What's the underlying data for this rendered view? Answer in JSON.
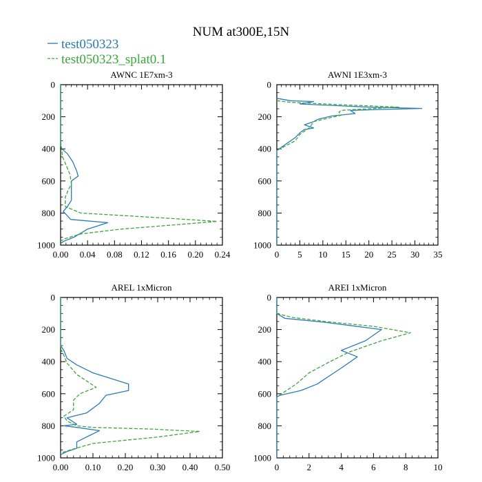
{
  "figure": {
    "title": "NUM at300E,15N",
    "colors": {
      "series1": "#2a7ab8",
      "series2": "#3aa53a",
      "axis": "#000000"
    }
  },
  "legend": {
    "items": [
      {
        "name": "test050323",
        "style": "solid",
        "color": "#2a7ab8"
      },
      {
        "name": "test050323_splat0.1",
        "style": "dashed",
        "color": "#3aa53a"
      }
    ]
  },
  "chart_data": [
    {
      "type": "line",
      "title": "AWNC  1E7xm-3",
      "xlim": [
        0,
        0.24
      ],
      "ylim": [
        0,
        1000
      ],
      "y_inverted": true,
      "xticks": [
        0,
        0.04,
        0.08,
        0.12,
        0.16,
        0.2,
        0.24
      ],
      "xtick_labels": [
        "0.00",
        "0.04",
        "0.08",
        "0.12",
        "0.16",
        "0.20",
        "0.24"
      ],
      "yticks": [
        0,
        200,
        400,
        600,
        800,
        1000
      ],
      "ytick_labels": [
        "0",
        "200",
        "400",
        "600",
        "800",
        "1000"
      ],
      "series": [
        {
          "name": "test050323",
          "style": "solid",
          "color": "#2a7ab8",
          "points": [
            [
              0,
              0
            ],
            [
              0,
              380
            ],
            [
              0.002,
              400
            ],
            [
              0.01,
              430
            ],
            [
              0.018,
              480
            ],
            [
              0.024,
              540
            ],
            [
              0.026,
              570
            ],
            [
              0.016,
              600
            ],
            [
              0.016,
              660
            ],
            [
              0.016,
              720
            ],
            [
              0.01,
              760
            ],
            [
              0.004,
              790
            ],
            [
              0.015,
              840
            ],
            [
              0.07,
              860
            ],
            [
              0.04,
              900
            ],
            [
              0.02,
              950
            ],
            [
              0.005,
              975
            ],
            [
              0,
              990
            ]
          ]
        },
        {
          "name": "test050323_splat0.1",
          "style": "dashed",
          "color": "#3aa53a",
          "points": [
            [
              0,
              0
            ],
            [
              0,
              350
            ],
            [
              0.003,
              450
            ],
            [
              0.008,
              500
            ],
            [
              0.014,
              560
            ],
            [
              0.016,
              620
            ],
            [
              0.012,
              650
            ],
            [
              0.007,
              700
            ],
            [
              0.007,
              760
            ],
            [
              0.03,
              800
            ],
            [
              0.15,
              830
            ],
            [
              0.232,
              852
            ],
            [
              0.18,
              870
            ],
            [
              0.09,
              900
            ],
            [
              0.03,
              930
            ],
            [
              0.006,
              960
            ],
            [
              0,
              975
            ]
          ]
        }
      ]
    },
    {
      "type": "line",
      "title": "AWNI  1E3xm-3",
      "xlim": [
        0,
        35
      ],
      "ylim": [
        0,
        1000
      ],
      "y_inverted": true,
      "xticks": [
        0,
        5,
        10,
        15,
        20,
        25,
        30,
        35
      ],
      "xtick_labels": [
        "0",
        "5",
        "10",
        "15",
        "20",
        "25",
        "30",
        "35"
      ],
      "yticks": [
        0,
        200,
        400,
        600,
        800,
        1000
      ],
      "ytick_labels": [
        "0",
        "200",
        "400",
        "600",
        "800",
        "1000"
      ],
      "series": [
        {
          "name": "test050323",
          "style": "solid",
          "color": "#2a7ab8",
          "points": [
            [
              0,
              85
            ],
            [
              3,
              100
            ],
            [
              8,
              105
            ],
            [
              5,
              120
            ],
            [
              20,
              140
            ],
            [
              31.5,
              148
            ],
            [
              22,
              155
            ],
            [
              16,
              160
            ],
            [
              17,
              180
            ],
            [
              12,
              195
            ],
            [
              9,
              215
            ],
            [
              8,
              230
            ],
            [
              6,
              250
            ],
            [
              8,
              270
            ],
            [
              6,
              280
            ],
            [
              5,
              300
            ],
            [
              4,
              330
            ],
            [
              2,
              370
            ],
            [
              0,
              410
            ],
            [
              0,
              1000
            ]
          ]
        },
        {
          "name": "test050323_splat0.1",
          "style": "dashed",
          "color": "#3aa53a",
          "points": [
            [
              0,
              100
            ],
            [
              3,
              110
            ],
            [
              14,
              125
            ],
            [
              26.5,
              140
            ],
            [
              20,
              150
            ],
            [
              14,
              160
            ],
            [
              13.5,
              170
            ],
            [
              14,
              190
            ],
            [
              11,
              210
            ],
            [
              8,
              230
            ],
            [
              7,
              270
            ],
            [
              5,
              310
            ],
            [
              4,
              350
            ],
            [
              2,
              380
            ],
            [
              0,
              410
            ]
          ]
        }
      ]
    },
    {
      "type": "line",
      "title": "AREL  1xMicron",
      "xlim": [
        0,
        0.5
      ],
      "ylim": [
        0,
        1000
      ],
      "y_inverted": true,
      "xticks": [
        0,
        0.1,
        0.2,
        0.3,
        0.4,
        0.5
      ],
      "xtick_labels": [
        "0.00",
        "0.10",
        "0.20",
        "0.30",
        "0.40",
        "0.50"
      ],
      "yticks": [
        0,
        200,
        400,
        600,
        800,
        1000
      ],
      "ytick_labels": [
        "0",
        "200",
        "400",
        "600",
        "800",
        "1000"
      ],
      "series": [
        {
          "name": "test050323",
          "style": "solid",
          "color": "#2a7ab8",
          "points": [
            [
              0,
              0
            ],
            [
              0,
              300
            ],
            [
              0.01,
              330
            ],
            [
              0.02,
              380
            ],
            [
              0.05,
              420
            ],
            [
              0.1,
              470
            ],
            [
              0.21,
              540
            ],
            [
              0.21,
              580
            ],
            [
              0.14,
              610
            ],
            [
              0.12,
              660
            ],
            [
              0.08,
              720
            ],
            [
              0.02,
              750
            ],
            [
              0.05,
              790
            ],
            [
              0.01,
              800
            ],
            [
              0.05,
              810
            ],
            [
              0.12,
              830
            ],
            [
              0.05,
              900
            ],
            [
              0.05,
              940
            ],
            [
              0.02,
              960
            ],
            [
              0,
              980
            ]
          ]
        },
        {
          "name": "test050323_splat0.1",
          "style": "dashed",
          "color": "#3aa53a",
          "points": [
            [
              0,
              0
            ],
            [
              0,
              320
            ],
            [
              0.01,
              360
            ],
            [
              0.02,
              410
            ],
            [
              0.05,
              480
            ],
            [
              0.11,
              560
            ],
            [
              0.06,
              600
            ],
            [
              0.04,
              640
            ],
            [
              0.04,
              700
            ],
            [
              0.01,
              740
            ],
            [
              0.02,
              770
            ],
            [
              0.05,
              800
            ],
            [
              0.1,
              810
            ],
            [
              0.28,
              820
            ],
            [
              0.43,
              835
            ],
            [
              0.3,
              870
            ],
            [
              0.1,
              910
            ],
            [
              0.03,
              950
            ],
            [
              0,
              970
            ]
          ]
        }
      ]
    },
    {
      "type": "line",
      "title": "AREI  1xMicron",
      "xlim": [
        0,
        10
      ],
      "ylim": [
        0,
        1000
      ],
      "y_inverted": true,
      "xticks": [
        0,
        2,
        4,
        6,
        8,
        10
      ],
      "xtick_labels": [
        "0",
        "2",
        "4",
        "6",
        "8",
        "10"
      ],
      "yticks": [
        0,
        200,
        400,
        600,
        800,
        1000
      ],
      "ytick_labels": [
        "0",
        "200",
        "400",
        "600",
        "800",
        "1000"
      ],
      "series": [
        {
          "name": "test050323",
          "style": "solid",
          "color": "#2a7ab8",
          "points": [
            [
              0,
              0
            ],
            [
              0,
              100
            ],
            [
              0.5,
              130
            ],
            [
              3,
              155
            ],
            [
              6.5,
              200
            ],
            [
              5.5,
              270
            ],
            [
              4,
              330
            ],
            [
              5,
              370
            ],
            [
              4,
              440
            ],
            [
              2.5,
              540
            ],
            [
              1.5,
              580
            ],
            [
              0.2,
              610
            ],
            [
              0,
              620
            ],
            [
              0,
              1000
            ]
          ]
        },
        {
          "name": "test050323_splat0.1",
          "style": "dashed",
          "color": "#3aa53a",
          "points": [
            [
              0,
              100
            ],
            [
              1,
              125
            ],
            [
              3,
              150
            ],
            [
              6,
              180
            ],
            [
              8.3,
              220
            ],
            [
              6.5,
              270
            ],
            [
              4.5,
              340
            ],
            [
              3.3,
              400
            ],
            [
              2,
              470
            ],
            [
              1.2,
              540
            ],
            [
              0.3,
              600
            ],
            [
              0,
              620
            ]
          ]
        }
      ]
    }
  ]
}
